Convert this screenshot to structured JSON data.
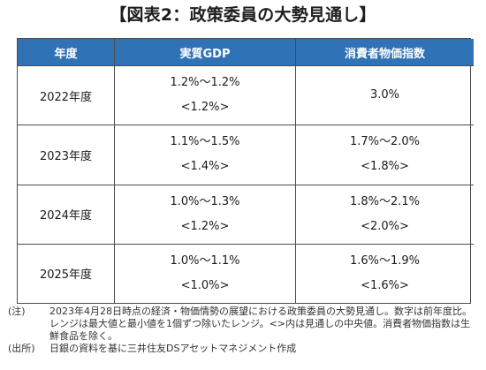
{
  "title": "【図表2：政策委員の大勢見通し】",
  "table": {
    "headers": [
      "年度",
      "実質GDP",
      "消費者物価指数"
    ],
    "rows": [
      {
        "year": "2022年度",
        "gdp_range": "1.2%～1.2%",
        "gdp_median": "<1.2%>",
        "cpi_range": "3.0%",
        "cpi_median": ""
      },
      {
        "year": "2023年度",
        "gdp_range": "1.1%～1.5%",
        "gdp_median": "<1.4%>",
        "cpi_range": "1.7%～2.0%",
        "cpi_median": "<1.8%>"
      },
      {
        "year": "2024年度",
        "gdp_range": "1.0%～1.3%",
        "gdp_median": "<1.2%>",
        "cpi_range": "1.8%～2.1%",
        "cpi_median": "<2.0%>"
      },
      {
        "year": "2025年度",
        "gdp_range": "1.0%～1.1%",
        "gdp_median": "<1.0%>",
        "cpi_range": "1.6%～1.9%",
        "cpi_median": "<1.6%>"
      }
    ]
  },
  "notes": [
    {
      "label": "(注)",
      "text": "2023年4月28日時点の経済・物価情勢の展望における政策委員の大勢見通し。数字は前年度比。レンジは最大値と最小値を1個ずつ除いたレンジ。<>内は見通しの中央値。消費者物価指数は生鮮食品を除く。"
    },
    {
      "label": "(出所)",
      "text": "日銀の資料を基に三井住友DSアセットマネジメント作成"
    }
  ]
}
